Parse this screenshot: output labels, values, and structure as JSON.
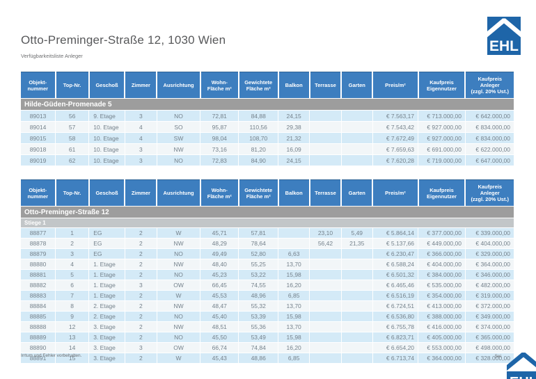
{
  "page": {
    "title": "Otto-Preminger-Straße 12, 1030 Wien",
    "subtitle": "Verfügbarkeitsliste Anleger",
    "footer_left": "Irrtum und Fehler vorbehalten.",
    "footer_right": "Sei",
    "logo_text": "EHL"
  },
  "colors": {
    "header_blue": "#3d7ebf",
    "group_gray": "#9d9d9d",
    "subgroup_gray": "#c2c6c8",
    "row_light_blue": "#d4eaf7",
    "row_white": "#f2f6f8",
    "row_text": "#74818b",
    "logo_blue": "#1e65a8"
  },
  "columns": [
    {
      "id": "objektnummer",
      "label": "Objekt-\nnummer",
      "width": 7.0,
      "align": "center"
    },
    {
      "id": "top-nr",
      "label": "Top-Nr.",
      "width": 6.8,
      "align": "center"
    },
    {
      "id": "geschoss",
      "label": "Geschoß",
      "width": 7.3,
      "align": "left"
    },
    {
      "id": "zimmer",
      "label": "Zimmer",
      "width": 6.5,
      "align": "center"
    },
    {
      "id": "ausrichtung",
      "label": "Ausrichtung",
      "width": 8.8,
      "align": "center"
    },
    {
      "id": "wohnflaeche",
      "label": "Wohn-\nFläche m²",
      "width": 7.8,
      "align": "center"
    },
    {
      "id": "gewichtete-flaeche",
      "label": "Gewichtete\nFläche m²",
      "width": 8.0,
      "align": "center"
    },
    {
      "id": "balkon",
      "label": "Balkon",
      "width": 6.4,
      "align": "center"
    },
    {
      "id": "terrasse",
      "label": "Terrasse",
      "width": 6.4,
      "align": "center"
    },
    {
      "id": "garten",
      "label": "Garten",
      "width": 6.4,
      "align": "center"
    },
    {
      "id": "preis-m2",
      "label": "Preis/m²",
      "width": 9.2,
      "align": "right"
    },
    {
      "id": "kaufpreis-eigennutzer",
      "label": "Kaufpreis\nEigennutzer",
      "width": 9.6,
      "align": "right"
    },
    {
      "id": "kaufpreis-anleger",
      "label": "Kaufpreis\nAnleger\n(zzgl. 20% Ust.)",
      "width": 9.8,
      "align": "right"
    }
  ],
  "tables": [
    {
      "group_label": "Hilde-Güden-Promenade 5",
      "subgroup_label": null,
      "rows": [
        [
          "89013",
          "56",
          "9. Etage",
          "3",
          "NO",
          "72,81",
          "84,88",
          "24,15",
          "",
          "",
          "€ 7.563,17",
          "€ 713.000,00",
          "€ 642.000,00"
        ],
        [
          "89014",
          "57",
          "10. Etage",
          "4",
          "SO",
          "95,87",
          "110,56",
          "29,38",
          "",
          "",
          "€ 7.543,42",
          "€ 927.000,00",
          "€ 834.000,00"
        ],
        [
          "89015",
          "58",
          "10. Etage",
          "4",
          "SW",
          "98,04",
          "108,70",
          "21,32",
          "",
          "",
          "€ 7.672,49",
          "€ 927.000,00",
          "€ 834.000,00"
        ],
        [
          "89018",
          "61",
          "10. Etage",
          "3",
          "NW",
          "73,16",
          "81,20",
          "16,09",
          "",
          "",
          "€ 7.659,63",
          "€ 691.000,00",
          "€ 622.000,00"
        ],
        [
          "89019",
          "62",
          "10. Etage",
          "3",
          "NO",
          "72,83",
          "84,90",
          "24,15",
          "",
          "",
          "€ 7.620,28",
          "€ 719.000,00",
          "€ 647.000,00"
        ]
      ]
    },
    {
      "group_label": "Otto-Preminger-Straße 12",
      "subgroup_label": "Stiege 1",
      "rows": [
        [
          "88877",
          "1",
          "EG",
          "2",
          "W",
          "45,71",
          "57,81",
          "",
          "23,10",
          "5,49",
          "€ 5.864,14",
          "€ 377.000,00",
          "€ 339.000,00"
        ],
        [
          "88878",
          "2",
          "EG",
          "2",
          "NW",
          "48,29",
          "78,64",
          "",
          "56,42",
          "21,35",
          "€ 5.137,66",
          "€ 449.000,00",
          "€ 404.000,00"
        ],
        [
          "88879",
          "3",
          "EG",
          "2",
          "NO",
          "49,49",
          "52,80",
          "6,63",
          "",
          "",
          "€ 6.230,47",
          "€ 366.000,00",
          "€ 329.000,00"
        ],
        [
          "88880",
          "4",
          "1. Etage",
          "2",
          "NW",
          "48,40",
          "55,25",
          "13,70",
          "",
          "",
          "€ 6.588,24",
          "€ 404.000,00",
          "€ 364.000,00"
        ],
        [
          "88881",
          "5",
          "1. Etage",
          "2",
          "NO",
          "45,23",
          "53,22",
          "15,98",
          "",
          "",
          "€ 6.501,32",
          "€ 384.000,00",
          "€ 346.000,00"
        ],
        [
          "88882",
          "6",
          "1. Etage",
          "3",
          "OW",
          "66,45",
          "74,55",
          "16,20",
          "",
          "",
          "€ 6.465,46",
          "€ 535.000,00",
          "€ 482.000,00"
        ],
        [
          "88883",
          "7",
          "1. Etage",
          "2",
          "W",
          "45,53",
          "48,96",
          "6,85",
          "",
          "",
          "€ 6.516,19",
          "€ 354.000,00",
          "€ 319.000,00"
        ],
        [
          "88884",
          "8",
          "2. Etage",
          "2",
          "NW",
          "48,47",
          "55,32",
          "13,70",
          "",
          "",
          "€ 6.724,51",
          "€ 413.000,00",
          "€ 372.000,00"
        ],
        [
          "88885",
          "9",
          "2. Etage",
          "2",
          "NO",
          "45,40",
          "53,39",
          "15,98",
          "",
          "",
          "€ 6.536,80",
          "€ 388.000,00",
          "€ 349.000,00"
        ],
        [
          "88888",
          "12",
          "3. Etage",
          "2",
          "NW",
          "48,51",
          "55,36",
          "13,70",
          "",
          "",
          "€ 6.755,78",
          "€ 416.000,00",
          "€ 374.000,00"
        ],
        [
          "88889",
          "13",
          "3. Etage",
          "2",
          "NO",
          "45,50",
          "53,49",
          "15,98",
          "",
          "",
          "€ 6.823,71",
          "€ 405.000,00",
          "€ 365.000,00"
        ],
        [
          "88890",
          "14",
          "3. Etage",
          "3",
          "OW",
          "66,74",
          "74,84",
          "16,20",
          "",
          "",
          "€ 6.654,20",
          "€ 553.000,00",
          "€ 498.000,00"
        ],
        [
          "88891",
          "15",
          "3. Etage",
          "2",
          "W",
          "45,43",
          "48,86",
          "6,85",
          "",
          "",
          "€ 6.713,74",
          "€ 364.000,00",
          "€ 328.000,00"
        ]
      ]
    }
  ]
}
